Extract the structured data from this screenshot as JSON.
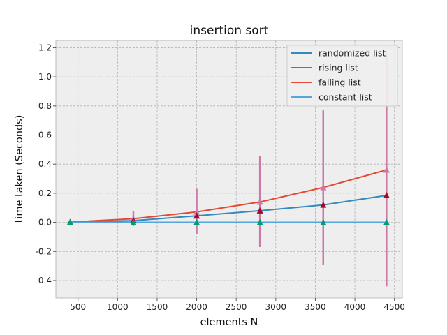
{
  "chart_data": {
    "type": "line",
    "title": "insertion sort",
    "xlabel": "elements N",
    "ylabel": "time taken (Seconds)",
    "xlim": [
      220,
      4600
    ],
    "ylim": [
      -0.52,
      1.25
    ],
    "xticks": [
      500,
      1000,
      1500,
      2000,
      2500,
      3000,
      3500,
      4000,
      4500
    ],
    "yticks": [
      -0.4,
      -0.2,
      0.0,
      0.2,
      0.4,
      0.6,
      0.8,
      1.0,
      1.2
    ],
    "grid": true,
    "legend_position": "top-right",
    "x": [
      400,
      1200,
      2000,
      2800,
      3600,
      4400
    ],
    "series": [
      {
        "name": "randomized list",
        "color": "#348ABD",
        "values": [
          0.0,
          0.012,
          0.045,
          0.08,
          0.12,
          0.185
        ]
      },
      {
        "name": "rising list",
        "color": "#7A68A6",
        "values": [
          0.0,
          0.0,
          0.0,
          0.0,
          0.0,
          0.0
        ]
      },
      {
        "name": "falling list",
        "color": "#E24A33",
        "values": [
          0.002,
          0.025,
          0.072,
          0.14,
          0.24,
          0.36
        ]
      },
      {
        "name": "constant list",
        "color": "#56A6DD",
        "values": [
          0.0,
          0.0,
          0.0,
          0.0,
          0.0,
          0.0
        ]
      }
    ],
    "markers": [
      {
        "series": "falling list",
        "color": "#CC79A7",
        "values": [
          0.002,
          0.025,
          0.072,
          0.14,
          0.24,
          0.36
        ],
        "err_low": [
          0.0,
          -0.025,
          -0.08,
          -0.17,
          -0.29,
          -0.44
        ],
        "err_high": [
          0.005,
          0.08,
          0.23,
          0.455,
          0.77,
          1.17
        ]
      },
      {
        "series": "randomized list",
        "color": "#A60628",
        "values": [
          0.0,
          0.012,
          0.045,
          0.08,
          0.12,
          0.185
        ]
      },
      {
        "series": "constant list",
        "color": "#009E73",
        "values": [
          0.0,
          0.0,
          0.0,
          0.0,
          0.0,
          0.0
        ]
      }
    ]
  }
}
